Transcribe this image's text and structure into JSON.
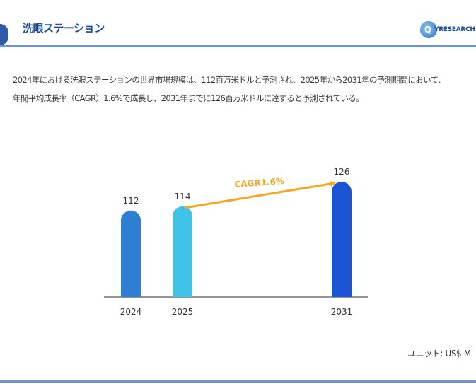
{
  "header": {
    "title": "洗眼ステーション",
    "logo_text": "YRESEARCH",
    "logo_letter": "Q"
  },
  "description": [
    "2024年における洗眼ステーションの世界市場規模は、112百万米ドルと予測され、2025年から2031年の予測期間において、",
    "年間平均成長率（CAGR）1.6%で成長し、2031年までに126百万米ドルに達すると予測されている。"
  ],
  "unit_label": "ユニット: US$ M",
  "colors": {
    "header_accent": "#2a5aa8",
    "bar_2024": "#2e7fd3",
    "bar_2025": "#3fc3e6",
    "bar_2031": "#1b55d6",
    "arrow": "#f5a623"
  },
  "chart_data": {
    "type": "bar",
    "categories": [
      "2024",
      "2025",
      "2031"
    ],
    "values": [
      112,
      114,
      126
    ],
    "data_labels": [
      "112",
      "114",
      "126"
    ],
    "annotation": "CAGR1.6%",
    "title": "",
    "xlabel": "",
    "ylabel": ""
  }
}
